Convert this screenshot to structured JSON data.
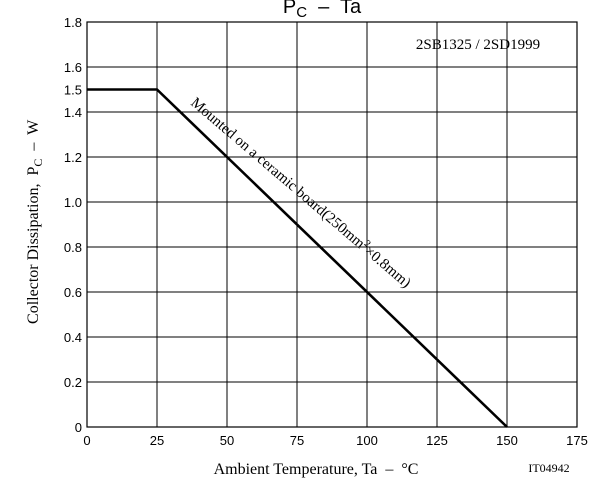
{
  "chart_data": {
    "type": "line",
    "title_main": "P",
    "title_sub": "C",
    "title_rest": "  –  Ta",
    "part_label": "2SB1325 / 2SD1999",
    "xlabel": "Ambient Temperature, Ta  –  °C",
    "ylabel_main": "Collector Dissipation,  P",
    "ylabel_sub": "C",
    "ylabel_rest": "  –  W",
    "figure_code": "IT04942",
    "curve_label_a": "Mounted on a ceramic board(250mm",
    "curve_label_sup": "2",
    "curve_label_b": "×0.8mm)",
    "xlim": [
      0,
      175
    ],
    "ylim": [
      0,
      1.8
    ],
    "x_ticks": [
      0,
      25,
      50,
      75,
      100,
      125,
      150,
      175
    ],
    "y_ticks": [
      0,
      0.2,
      0.4,
      0.6,
      0.8,
      1.0,
      1.2,
      1.4,
      1.5,
      1.6,
      1.8
    ],
    "x_tick_labels": [
      "0",
      "25",
      "50",
      "75",
      "100",
      "125",
      "150",
      "175"
    ],
    "y_tick_labels": [
      "0",
      "0.2",
      "0.4",
      "0.6",
      "0.8",
      "1.0",
      "1.2",
      "1.4",
      "1.5",
      "1.6",
      "1.8"
    ],
    "x_grid": [
      25,
      50,
      75,
      100,
      125,
      150
    ],
    "y_grid": [
      0.2,
      0.4,
      0.6,
      0.8,
      1.0,
      1.2,
      1.4,
      1.6
    ],
    "grid": true,
    "series": [
      {
        "x": [
          0,
          25,
          150
        ],
        "y": [
          1.5,
          1.5,
          0
        ]
      }
    ]
  }
}
